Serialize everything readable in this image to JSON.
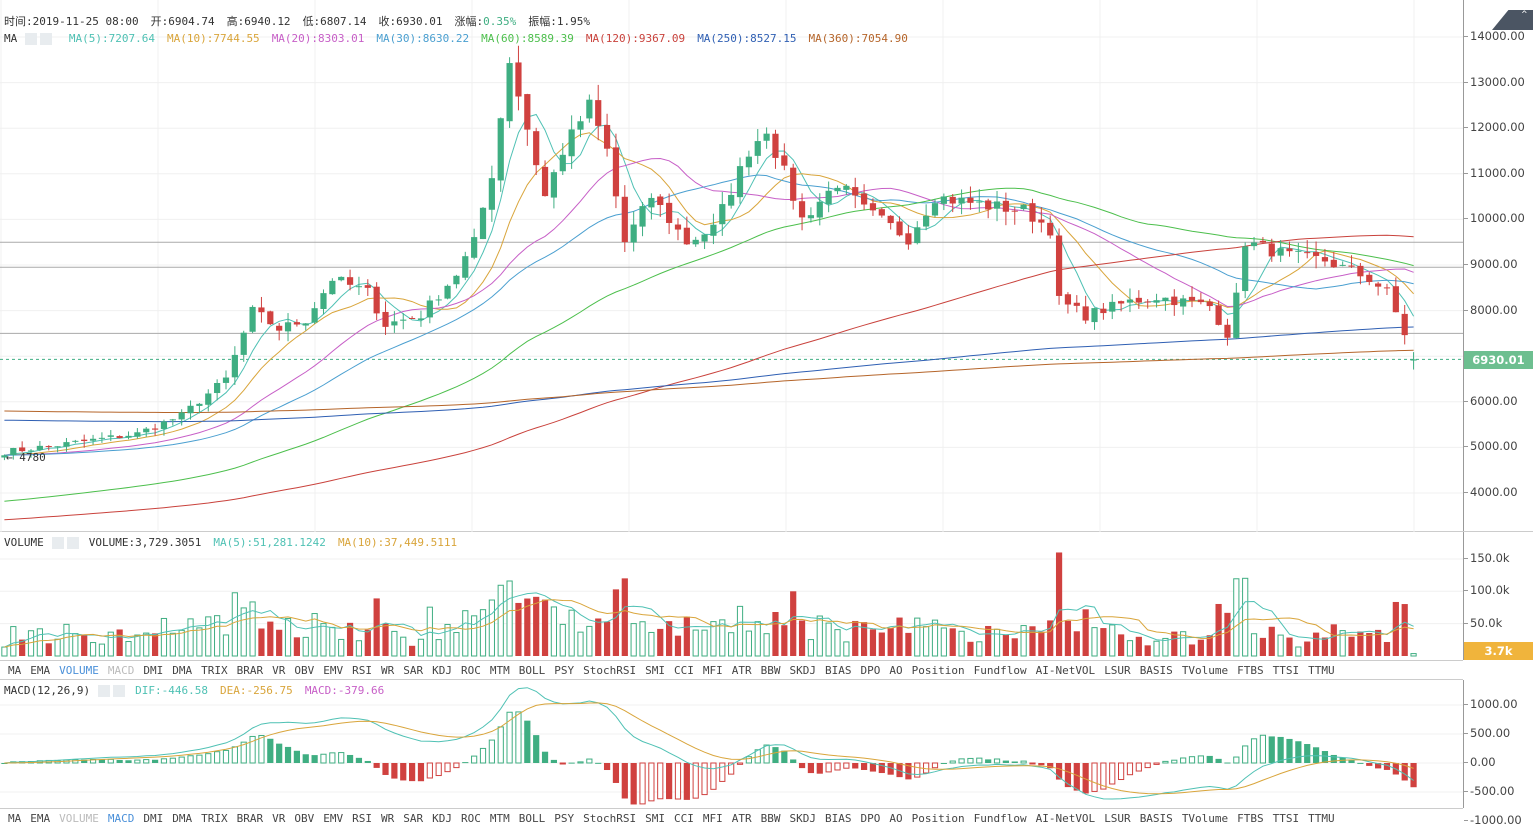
{
  "header": {
    "time": "时间:2019-11-25 08:00",
    "open": "开:6904.74",
    "high": "高:6940.12",
    "low": "低:6807.14",
    "close": "收:6930.01",
    "change_label": "涨幅:",
    "change": "0.35%",
    "amp": "振幅:1.95%"
  },
  "ma_legend": {
    "name": "MA",
    "items": [
      {
        "text": "MA(5):7207.64",
        "color": "#4fc1b4"
      },
      {
        "text": "MA(10):7744.55",
        "color": "#d9a53b"
      },
      {
        "text": "MA(20):8303.01",
        "color": "#c75fc7"
      },
      {
        "text": "MA(30):8630.22",
        "color": "#4a9fd0"
      },
      {
        "text": "MA(60):8589.39",
        "color": "#4cbf4c"
      },
      {
        "text": "MA(120):9367.09",
        "color": "#c9423c"
      },
      {
        "text": "MA(250):8527.15",
        "color": "#2f5fb3"
      },
      {
        "text": "MA(360):7054.90",
        "color": "#b5652a"
      }
    ]
  },
  "volume_legend": {
    "name": "VOLUME",
    "value": "VOLUME:3,729.3051",
    "ma5": "MA(5):51,281.1242",
    "ma10": "MA(10):37,449.5111"
  },
  "macd_legend": {
    "name": "MACD(12,26,9)",
    "dif": "DIF:-446.58",
    "dea": "DEA:-256.75",
    "macd": "MACD:-379.66"
  },
  "indicator_tabs": [
    "MA",
    "EMA",
    "VOLUME",
    "MACD",
    "DMI",
    "DMA",
    "TRIX",
    "BRAR",
    "VR",
    "OBV",
    "EMV",
    "RSI",
    "WR",
    "SAR",
    "KDJ",
    "ROC",
    "MTM",
    "BOLL",
    "PSY",
    "StochRSI",
    "SMI",
    "CCI",
    "MFI",
    "ATR",
    "BBW",
    "SKDJ",
    "BIAS",
    "DPO",
    "AO",
    "Position",
    "Fundflow",
    "AI-NetVOL",
    "LSUR",
    "BASIS",
    "TVolume",
    "FTBS",
    "TTSI",
    "TTMU"
  ],
  "active_tab_upper": "VOLUME",
  "dim_tab_upper": "MACD",
  "active_tab_lower": "MACD",
  "dim_tab_lower": "VOLUME",
  "low_marker": "← 4780",
  "last_price": "6930.01",
  "last_volume": "3.7k",
  "colors": {
    "up": "#3fae82",
    "down": "#d0413f",
    "last": "#6dbf90",
    "vol_tag": "#f0b43c"
  },
  "chart_data": {
    "type": "candlestick",
    "candles": 160,
    "price_keypoints": [
      [
        0,
        4900
      ],
      [
        6,
        5050
      ],
      [
        15,
        5300
      ],
      [
        20,
        5700
      ],
      [
        25,
        6500
      ],
      [
        28,
        8000
      ],
      [
        31,
        7600
      ],
      [
        34,
        7800
      ],
      [
        37,
        8700
      ],
      [
        41,
        8400
      ],
      [
        43,
        7700
      ],
      [
        47,
        7900
      ],
      [
        51,
        8800
      ],
      [
        53,
        9500
      ],
      [
        55,
        11000
      ],
      [
        57,
        13500
      ],
      [
        59,
        12000
      ],
      [
        61,
        10500
      ],
      [
        63,
        11500
      ],
      [
        66,
        12500
      ],
      [
        68,
        11500
      ],
      [
        70,
        9500
      ],
      [
        73,
        10500
      ],
      [
        77,
        9500
      ],
      [
        80,
        9800
      ],
      [
        84,
        11500
      ],
      [
        86,
        12000
      ],
      [
        88,
        11000
      ],
      [
        90,
        10000
      ],
      [
        94,
        10800
      ],
      [
        97,
        10200
      ],
      [
        102,
        9600
      ],
      [
        105,
        10500
      ],
      [
        111,
        10300
      ],
      [
        115,
        10200
      ],
      [
        118,
        9800
      ],
      [
        119,
        8200
      ],
      [
        122,
        7900
      ],
      [
        127,
        8200
      ],
      [
        130,
        8300
      ],
      [
        136,
        8100
      ],
      [
        138,
        7500
      ],
      [
        139,
        8300
      ],
      [
        140,
        9500
      ],
      [
        145,
        9200
      ],
      [
        149,
        9100
      ],
      [
        154,
        8700
      ],
      [
        156,
        8400
      ],
      [
        158,
        7500
      ],
      [
        159,
        6930
      ]
    ],
    "price_axis": {
      "ticks": [
        14000,
        13000,
        12000,
        11000,
        10000,
        9000,
        8000,
        7000,
        6000,
        5000,
        4000
      ],
      "labels": [
        "14000.00",
        "13000.00",
        "12000.00",
        "11000.00",
        "10000.00",
        "9000.00",
        "8000.00",
        "6000.00",
        "5000.00",
        "4000.00"
      ],
      "range": [
        3700,
        14800
      ]
    },
    "volume_axis": {
      "labels": [
        "150.0k",
        "100.0k",
        "50.0k"
      ],
      "values": [
        150000,
        100000,
        50000
      ],
      "range": [
        0,
        170000
      ]
    },
    "macd_axis": {
      "labels": [
        "1000.00",
        "500.00",
        "0.00",
        "-500.00",
        "-1000.00"
      ],
      "values": [
        1000,
        500,
        0,
        -500,
        -1000
      ],
      "range": [
        -1100,
        1250
      ]
    },
    "support_lines": [
      9500,
      8950,
      7500
    ]
  }
}
